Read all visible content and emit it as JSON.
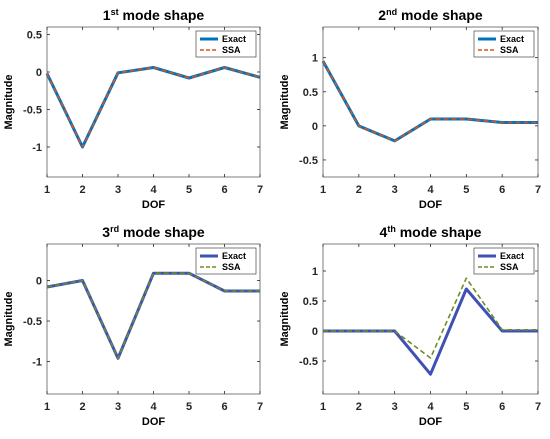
{
  "chart_data": [
    {
      "type": "line",
      "title": {
        "num": "1",
        "sup": "st",
        "rest": " mode shape"
      },
      "xlabel": "DOF",
      "ylabel": "Magnitude",
      "xlim": [
        1,
        7
      ],
      "ylim": [
        -1.4,
        0.6
      ],
      "xticks": [
        "1",
        "2",
        "3",
        "4",
        "5",
        "6",
        "7"
      ],
      "yticks": [
        "0.5",
        "0",
        "-0.5",
        "-1"
      ],
      "legend_position": "top-right",
      "x": [
        1,
        2,
        3,
        4,
        5,
        6,
        7
      ],
      "series": [
        {
          "name": "Exact",
          "color": "#0072bd",
          "style": "solid",
          "values": [
            -0.02,
            -1.0,
            -0.01,
            0.06,
            -0.08,
            0.06,
            -0.07
          ]
        },
        {
          "name": "SSA",
          "color": "#d95319",
          "style": "dashed",
          "values": [
            -0.02,
            -1.0,
            -0.01,
            0.06,
            -0.08,
            0.06,
            -0.07
          ]
        }
      ]
    },
    {
      "type": "line",
      "title": {
        "num": "2",
        "sup": "nd",
        "rest": " mode shape"
      },
      "xlabel": "DOF",
      "ylabel": "Magnitude",
      "xlim": [
        1,
        7
      ],
      "ylim": [
        -0.75,
        1.45
      ],
      "xticks": [
        "1",
        "2",
        "3",
        "4",
        "5",
        "6",
        "7"
      ],
      "yticks": [
        "1",
        "0.5",
        "0",
        "-0.5"
      ],
      "legend_position": "top-right",
      "x": [
        1,
        2,
        3,
        4,
        5,
        6,
        7
      ],
      "series": [
        {
          "name": "Exact",
          "color": "#0072bd",
          "style": "solid",
          "values": [
            0.95,
            0.0,
            -0.22,
            0.1,
            0.1,
            0.05,
            0.05
          ]
        },
        {
          "name": "SSA",
          "color": "#d95319",
          "style": "dashed",
          "values": [
            0.95,
            0.0,
            -0.22,
            0.1,
            0.1,
            0.05,
            0.05
          ]
        }
      ]
    },
    {
      "type": "line",
      "title": {
        "num": "3",
        "sup": "rd",
        "rest": " mode shape"
      },
      "xlabel": "DOF",
      "ylabel": "Magnitude",
      "xlim": [
        1,
        7
      ],
      "ylim": [
        -1.4,
        0.45
      ],
      "xticks": [
        "1",
        "2",
        "3",
        "4",
        "5",
        "6",
        "7"
      ],
      "yticks": [
        "0",
        "-0.5",
        "-1"
      ],
      "legend_position": "top-right",
      "x": [
        1,
        2,
        3,
        4,
        5,
        6,
        7
      ],
      "series": [
        {
          "name": "Exact",
          "color": "#3f51b5",
          "style": "solid",
          "values": [
            -0.08,
            0.0,
            -0.96,
            0.09,
            0.09,
            -0.13,
            -0.13
          ]
        },
        {
          "name": "SSA",
          "color": "#6b8e23",
          "style": "dashed",
          "values": [
            -0.08,
            0.0,
            -0.96,
            0.09,
            0.09,
            -0.13,
            -0.13
          ]
        }
      ]
    },
    {
      "type": "line",
      "title": {
        "num": "4",
        "sup": "th",
        "rest": " mode shape"
      },
      "xlabel": "DOF",
      "ylabel": "Magnitude",
      "xlim": [
        1,
        7
      ],
      "ylim": [
        -1.05,
        1.45
      ],
      "xticks": [
        "1",
        "2",
        "3",
        "4",
        "5",
        "6",
        "7"
      ],
      "yticks": [
        "1",
        "0.5",
        "0",
        "-0.5"
      ],
      "legend_position": "top-right",
      "x": [
        1,
        2,
        3,
        4,
        5,
        6,
        7
      ],
      "series": [
        {
          "name": "Exact",
          "color": "#3f51b5",
          "style": "solid",
          "values": [
            0.0,
            0.0,
            0.0,
            -0.72,
            0.7,
            0.0,
            0.0
          ]
        },
        {
          "name": "SSA",
          "color": "#6b8e23",
          "style": "dashed",
          "values": [
            0.0,
            0.0,
            0.0,
            -0.45,
            0.88,
            0.02,
            0.02
          ]
        }
      ]
    }
  ]
}
